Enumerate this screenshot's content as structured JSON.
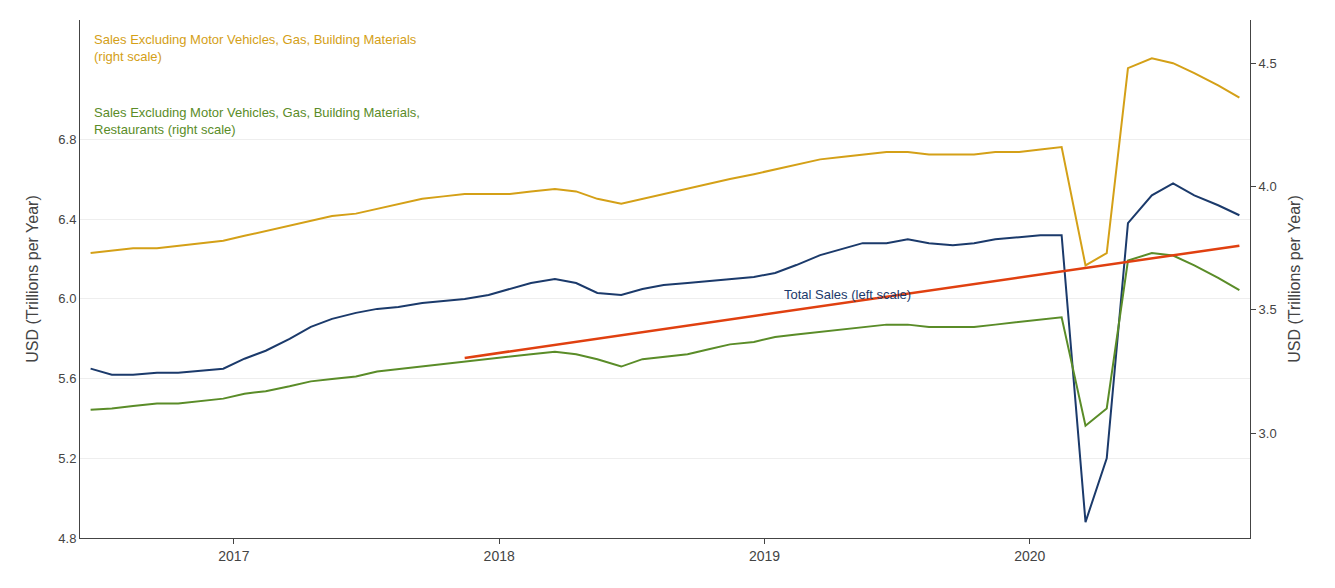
{
  "chart_data": {
    "type": "line",
    "xlim": [
      2016.42,
      2020.83
    ],
    "xticks": [
      2017,
      2018,
      2019,
      2020
    ],
    "ylabel": "USD (Trillions per Year)",
    "y2label": "USD (Trillions per Year)",
    "ylim": [
      4.8,
      7.4
    ],
    "yticks": [
      4.8,
      5.2,
      5.6,
      {
        "value": 6,
        "label": "6.0"
      },
      6.4,
      6.8
    ],
    "y2lim": [
      2.575,
      4.675
    ],
    "y2ticks": [
      {
        "value": 3,
        "label": "3.0"
      },
      3.5,
      {
        "value": 4,
        "label": "4.0"
      },
      4.5
    ],
    "grid": true,
    "series": [
      {
        "name": "Total Sales (left scale)",
        "color": "#1b3a6b",
        "axis": "y",
        "x": [
          2016.46,
          2016.54,
          2016.62,
          2016.71,
          2016.79,
          2016.87,
          2016.96,
          2017.04,
          2017.12,
          2017.21,
          2017.29,
          2017.37,
          2017.46,
          2017.54,
          2017.62,
          2017.71,
          2017.79,
          2017.87,
          2017.96,
          2018.04,
          2018.12,
          2018.21,
          2018.29,
          2018.37,
          2018.46,
          2018.54,
          2018.62,
          2018.71,
          2018.79,
          2018.87,
          2018.96,
          2019.04,
          2019.12,
          2019.21,
          2019.29,
          2019.37,
          2019.46,
          2019.54,
          2019.62,
          2019.71,
          2019.79,
          2019.87,
          2019.96,
          2020.04,
          2020.12,
          2020.21,
          2020.29,
          2020.37,
          2020.46,
          2020.54,
          2020.62,
          2020.71,
          2020.79
        ],
        "values": [
          5.65,
          5.62,
          5.62,
          5.63,
          5.63,
          5.64,
          5.65,
          5.7,
          5.74,
          5.8,
          5.86,
          5.9,
          5.93,
          5.95,
          5.96,
          5.98,
          5.99,
          6.0,
          6.02,
          6.05,
          6.08,
          6.1,
          6.08,
          6.03,
          6.02,
          6.05,
          6.07,
          6.08,
          6.09,
          6.1,
          6.11,
          6.13,
          6.17,
          6.22,
          6.25,
          6.28,
          6.28,
          6.3,
          6.28,
          6.27,
          6.28,
          6.3,
          6.31,
          6.32,
          6.32,
          4.88,
          5.2,
          6.38,
          6.52,
          6.58,
          6.52,
          6.47,
          6.42
        ]
      },
      {
        "name": "Sales Excluding Motor Vehicles, Gas, Building Materials\n(right scale)",
        "color": "#d4a017",
        "axis": "y2",
        "x": [
          2016.46,
          2016.54,
          2016.62,
          2016.71,
          2016.79,
          2016.87,
          2016.96,
          2017.04,
          2017.12,
          2017.21,
          2017.29,
          2017.37,
          2017.46,
          2017.54,
          2017.62,
          2017.71,
          2017.79,
          2017.87,
          2017.96,
          2018.04,
          2018.12,
          2018.21,
          2018.29,
          2018.37,
          2018.46,
          2018.54,
          2018.62,
          2018.71,
          2018.79,
          2018.87,
          2018.96,
          2019.04,
          2019.12,
          2019.21,
          2019.29,
          2019.37,
          2019.46,
          2019.54,
          2019.62,
          2019.71,
          2019.79,
          2019.87,
          2019.96,
          2020.04,
          2020.12,
          2020.21,
          2020.29,
          2020.37,
          2020.46,
          2020.54,
          2020.62,
          2020.71,
          2020.79
        ],
        "values": [
          3.73,
          3.74,
          3.75,
          3.75,
          3.76,
          3.77,
          3.78,
          3.8,
          3.82,
          3.84,
          3.86,
          3.88,
          3.89,
          3.91,
          3.93,
          3.95,
          3.96,
          3.97,
          3.97,
          3.97,
          3.98,
          3.99,
          3.98,
          3.95,
          3.93,
          3.95,
          3.97,
          3.99,
          4.01,
          4.03,
          4.05,
          4.07,
          4.09,
          4.11,
          4.12,
          4.13,
          4.14,
          4.14,
          4.13,
          4.13,
          4.13,
          4.14,
          4.14,
          4.15,
          4.16,
          3.68,
          3.73,
          4.48,
          4.52,
          4.5,
          4.46,
          4.41,
          4.36
        ]
      },
      {
        "name": "Sales Excluding Motor Vehicles, Gas, Building Materials,\nRestaurants (right scale)",
        "color": "#5a8c28",
        "axis": "y2",
        "x": [
          2016.46,
          2016.54,
          2016.62,
          2016.71,
          2016.79,
          2016.87,
          2016.96,
          2017.04,
          2017.12,
          2017.21,
          2017.29,
          2017.37,
          2017.46,
          2017.54,
          2017.62,
          2017.71,
          2017.79,
          2017.87,
          2017.96,
          2018.04,
          2018.12,
          2018.21,
          2018.29,
          2018.37,
          2018.46,
          2018.54,
          2018.62,
          2018.71,
          2018.79,
          2018.87,
          2018.96,
          2019.04,
          2019.12,
          2019.21,
          2019.29,
          2019.37,
          2019.46,
          2019.54,
          2019.62,
          2019.71,
          2019.79,
          2019.87,
          2019.96,
          2020.04,
          2020.12,
          2020.21,
          2020.29,
          2020.37,
          2020.46,
          2020.54,
          2020.62,
          2020.71,
          2020.79
        ],
        "values": [
          3.095,
          3.1,
          3.11,
          3.12,
          3.12,
          3.13,
          3.14,
          3.16,
          3.17,
          3.19,
          3.21,
          3.22,
          3.23,
          3.25,
          3.26,
          3.27,
          3.28,
          3.29,
          3.3,
          3.31,
          3.32,
          3.33,
          3.32,
          3.3,
          3.27,
          3.3,
          3.31,
          3.32,
          3.34,
          3.36,
          3.37,
          3.39,
          3.4,
          3.41,
          3.42,
          3.43,
          3.44,
          3.44,
          3.43,
          3.43,
          3.43,
          3.44,
          3.45,
          3.46,
          3.47,
          3.03,
          3.1,
          3.7,
          3.73,
          3.72,
          3.68,
          3.63,
          3.58
        ]
      },
      {
        "color": "#e04010",
        "axis": "y2",
        "x": [
          2017.87,
          2020.79
        ],
        "values": [
          3.305,
          3.76
        ]
      }
    ]
  }
}
